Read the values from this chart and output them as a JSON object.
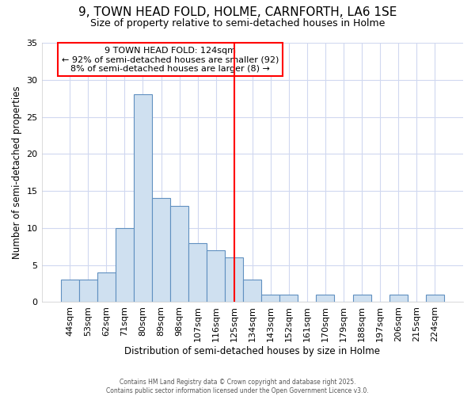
{
  "title": "9, TOWN HEAD FOLD, HOLME, CARNFORTH, LA6 1SE",
  "subtitle": "Size of property relative to semi-detached houses in Holme",
  "xlabel": "Distribution of semi-detached houses by size in Holme",
  "ylabel": "Number of semi-detached properties",
  "bins": [
    "44sqm",
    "53sqm",
    "62sqm",
    "71sqm",
    "80sqm",
    "89sqm",
    "98sqm",
    "107sqm",
    "116sqm",
    "125sqm",
    "134sqm",
    "143sqm",
    "152sqm",
    "161sqm",
    "170sqm",
    "179sqm",
    "188sqm",
    "197sqm",
    "206sqm",
    "215sqm",
    "224sqm"
  ],
  "values": [
    3,
    3,
    4,
    10,
    28,
    14,
    13,
    8,
    7,
    6,
    3,
    1,
    1,
    0,
    1,
    0,
    1,
    0,
    1,
    0,
    1
  ],
  "bar_color": "#cfe0f0",
  "bar_edge_color": "#6090c0",
  "vline_x_index": 9,
  "vline_color": "red",
  "annotation_title": "9 TOWN HEAD FOLD: 124sqm",
  "annotation_line2": "← 92% of semi-detached houses are smaller (92)",
  "annotation_line3": "8% of semi-detached houses are larger (8) →",
  "annotation_box_color": "white",
  "annotation_box_edge_color": "red",
  "ylim": [
    0,
    35
  ],
  "yticks": [
    0,
    5,
    10,
    15,
    20,
    25,
    30,
    35
  ],
  "footer": "Contains HM Land Registry data © Crown copyright and database right 2025.\nContains public sector information licensed under the Open Government Licence v3.0.",
  "background_color": "#ffffff",
  "grid_color": "#d0d8f0",
  "title_fontsize": 11,
  "subtitle_fontsize": 9
}
